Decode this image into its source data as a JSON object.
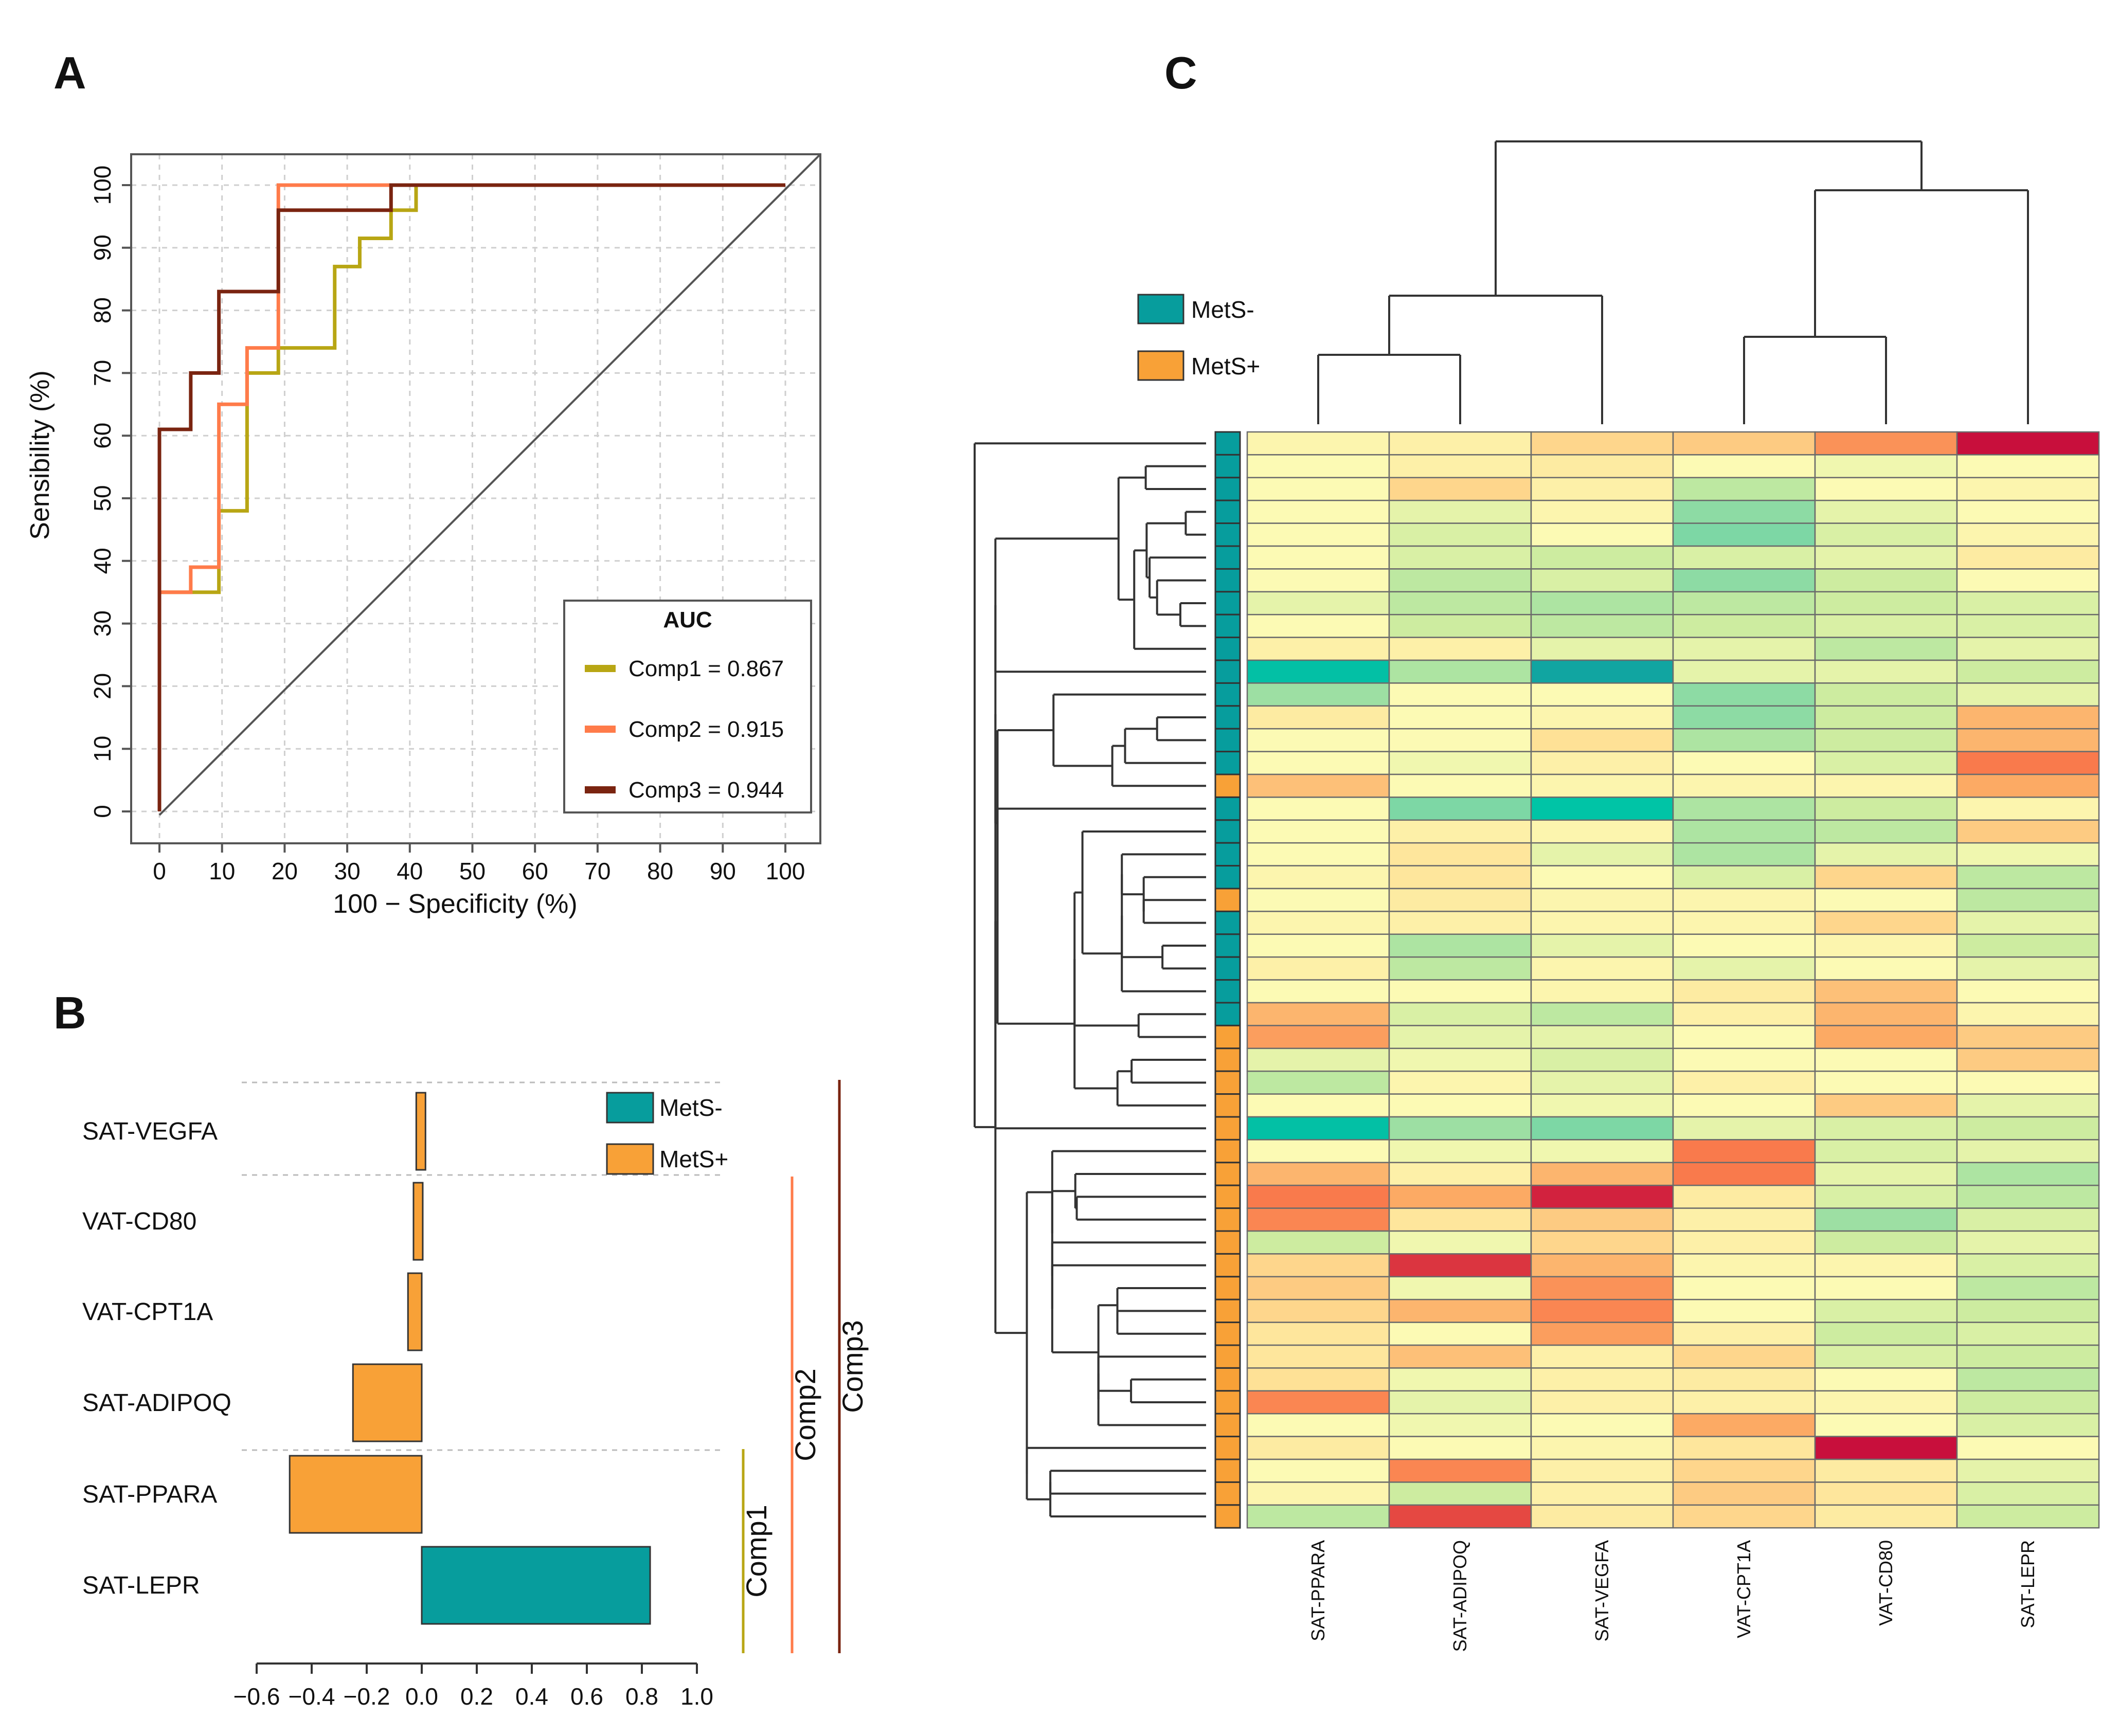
{
  "colors": {
    "mets_neg": "#079d9d",
    "mets_pos": "#f8a137",
    "comp1": "#b8a614",
    "comp2": "#ff7b4a",
    "comp3": "#7a2410",
    "axis": "#555555",
    "grid": "#cfcfcf"
  },
  "panel_labels": {
    "a": "A",
    "b": "B",
    "c": "C"
  },
  "chart_data": [
    {
      "id": "roc",
      "type": "line",
      "xlabel": "100 − Specificity (%)",
      "ylabel": "Sensibility (%)",
      "xlim": [
        0,
        100
      ],
      "ylim": [
        0,
        100
      ],
      "xticks": [
        "0",
        "10",
        "20",
        "30",
        "40",
        "50",
        "60",
        "70",
        "80",
        "90",
        "100"
      ],
      "yticks": [
        "0",
        "10",
        "20",
        "30",
        "40",
        "50",
        "60",
        "70",
        "80",
        "90",
        "100"
      ],
      "grid": true,
      "legend": {
        "title": "AUC",
        "placement": "bottom-right"
      },
      "series": [
        {
          "name": "Comp1 = 0.867",
          "color": "#b8a614",
          "points": [
            [
              0,
              0
            ],
            [
              0,
              35
            ],
            [
              5,
              35
            ],
            [
              9.5,
              35
            ],
            [
              9.5,
              48
            ],
            [
              14,
              48
            ],
            [
              14,
              70
            ],
            [
              19,
              70
            ],
            [
              19,
              74
            ],
            [
              28,
              74
            ],
            [
              28,
              87
            ],
            [
              32,
              87
            ],
            [
              32,
              91.5
            ],
            [
              37,
              91.5
            ],
            [
              37,
              96
            ],
            [
              41,
              96
            ],
            [
              41,
              100
            ],
            [
              100,
              100
            ]
          ]
        },
        {
          "name": "Comp2 = 0.915",
          "color": "#ff7b4a",
          "points": [
            [
              0,
              0
            ],
            [
              0,
              35
            ],
            [
              5,
              35
            ],
            [
              5,
              39
            ],
            [
              9.5,
              39
            ],
            [
              9.5,
              65
            ],
            [
              14,
              65
            ],
            [
              14,
              74
            ],
            [
              19,
              74
            ],
            [
              19,
              100
            ],
            [
              100,
              100
            ]
          ]
        },
        {
          "name": "Comp3 = 0.944",
          "color": "#7a2410",
          "points": [
            [
              0,
              0
            ],
            [
              0,
              61
            ],
            [
              5,
              61
            ],
            [
              5,
              70
            ],
            [
              9.5,
              70
            ],
            [
              9.5,
              83
            ],
            [
              19,
              83
            ],
            [
              19,
              96
            ],
            [
              37,
              96
            ],
            [
              37,
              100
            ],
            [
              100,
              100
            ]
          ]
        }
      ]
    },
    {
      "id": "loadings",
      "type": "bar",
      "orientation": "horizontal",
      "categories": [
        "SAT-VEGFA",
        "VAT-CD80",
        "VAT-CPT1A",
        "SAT-ADIPOQ",
        "SAT-PPARA",
        "SAT-LEPR"
      ],
      "values": [
        -0.02,
        -0.03,
        -0.05,
        -0.25,
        -0.48,
        0.83
      ],
      "groups": [
        "MetS+",
        "MetS+",
        "MetS+",
        "MetS+",
        "MetS+",
        "MetS-"
      ],
      "xlim": [
        -0.6,
        1.0
      ],
      "xticks": [
        "−0.6",
        "−0.4",
        "−0.2",
        "0.0",
        "0.2",
        "0.4",
        "0.6",
        "0.8",
        "1.0"
      ],
      "legend": [
        "MetS-",
        "MetS+"
      ],
      "component_brackets": [
        {
          "label": "Comp1",
          "rows": [
            "SAT-LEPR"
          ]
        },
        {
          "label": "Comp2",
          "rows": [
            "SAT-LEPR",
            "SAT-PPARA",
            "SAT-ADIPOQ",
            "VAT-CPT1A",
            "VAT-CD80"
          ]
        },
        {
          "label": "Comp3",
          "rows": [
            "SAT-LEPR",
            "SAT-PPARA",
            "SAT-ADIPOQ",
            "VAT-CPT1A",
            "VAT-CD80",
            "SAT-VEGFA"
          ]
        }
      ]
    },
    {
      "id": "heatmap",
      "type": "heatmap",
      "columns": [
        "SAT-PPARA",
        "SAT-ADIPOQ",
        "SAT-VEGFA",
        "VAT-CPT1A",
        "VAT-CD80",
        "SAT-LEPR"
      ],
      "legend": [
        "MetS-",
        "MetS+"
      ],
      "scale_note": "values are relative expression levels (-1 low/teal … +1 high/crimson)",
      "rows": [
        {
          "group": "MetS-",
          "values": [
            0.05,
            0.1,
            0.3,
            0.35,
            0.6,
            1.0
          ]
        },
        {
          "group": "MetS-",
          "values": [
            0.0,
            0.1,
            0.15,
            0.0,
            -0.05,
            0.0
          ]
        },
        {
          "group": "MetS-",
          "values": [
            0.0,
            0.3,
            0.1,
            -0.25,
            0.0,
            0.05
          ]
        },
        {
          "group": "MetS-",
          "values": [
            0.0,
            -0.1,
            0.05,
            -0.4,
            -0.1,
            0.0
          ]
        },
        {
          "group": "MetS-",
          "values": [
            0.0,
            -0.15,
            0.0,
            -0.45,
            -0.15,
            0.05
          ]
        },
        {
          "group": "MetS-",
          "values": [
            0.0,
            -0.15,
            -0.2,
            -0.15,
            -0.1,
            0.15
          ]
        },
        {
          "group": "MetS-",
          "values": [
            0.0,
            -0.25,
            -0.15,
            -0.4,
            -0.2,
            0.0
          ]
        },
        {
          "group": "MetS-",
          "values": [
            -0.1,
            -0.25,
            -0.3,
            -0.25,
            -0.2,
            -0.15
          ]
        },
        {
          "group": "MetS-",
          "values": [
            0.0,
            -0.2,
            -0.25,
            -0.2,
            -0.15,
            -0.15
          ]
        },
        {
          "group": "MetS-",
          "values": [
            0.1,
            0.1,
            -0.1,
            -0.1,
            -0.25,
            -0.1
          ]
        },
        {
          "group": "MetS-",
          "values": [
            -0.95,
            -0.3,
            -0.65,
            -0.1,
            -0.1,
            -0.2
          ]
        },
        {
          "group": "MetS-",
          "values": [
            -0.35,
            0.0,
            0.0,
            -0.4,
            -0.2,
            -0.1
          ]
        },
        {
          "group": "MetS-",
          "values": [
            0.15,
            0.0,
            0.05,
            -0.4,
            -0.2,
            0.45
          ]
        },
        {
          "group": "MetS-",
          "values": [
            0.0,
            0.0,
            0.25,
            -0.3,
            -0.2,
            0.45
          ]
        },
        {
          "group": "MetS-",
          "values": [
            0.0,
            -0.05,
            0.1,
            0.0,
            -0.15,
            0.7
          ]
        },
        {
          "group": "MetS+",
          "values": [
            0.4,
            0.0,
            0.05,
            0.05,
            0.05,
            0.5
          ]
        },
        {
          "group": "MetS-",
          "values": [
            0.0,
            -0.45,
            -1.0,
            -0.3,
            -0.2,
            0.05
          ]
        },
        {
          "group": "MetS-",
          "values": [
            0.0,
            0.1,
            0.05,
            -0.3,
            -0.25,
            0.35
          ]
        },
        {
          "group": "MetS-",
          "values": [
            0.0,
            0.2,
            -0.1,
            -0.3,
            -0.1,
            -0.05
          ]
        },
        {
          "group": "MetS-",
          "values": [
            0.05,
            0.2,
            0.0,
            -0.15,
            0.3,
            -0.25
          ]
        },
        {
          "group": "MetS+",
          "values": [
            0.0,
            0.15,
            0.05,
            0.05,
            0.0,
            -0.25
          ]
        },
        {
          "group": "MetS-",
          "values": [
            0.05,
            0.1,
            0.05,
            0.05,
            0.3,
            -0.1
          ]
        },
        {
          "group": "MetS-",
          "values": [
            0.0,
            -0.3,
            -0.1,
            0.0,
            0.05,
            -0.2
          ]
        },
        {
          "group": "MetS-",
          "values": [
            0.1,
            -0.25,
            0.05,
            -0.1,
            0.0,
            -0.1
          ]
        },
        {
          "group": "MetS-",
          "values": [
            0.0,
            0.0,
            0.05,
            0.15,
            0.4,
            0.0
          ]
        },
        {
          "group": "MetS-",
          "values": [
            0.45,
            -0.15,
            -0.25,
            0.1,
            0.45,
            0.05
          ]
        },
        {
          "group": "MetS+",
          "values": [
            0.55,
            -0.1,
            -0.1,
            0.0,
            0.5,
            0.35
          ]
        },
        {
          "group": "MetS+",
          "values": [
            -0.1,
            -0.05,
            -0.15,
            0.0,
            0.0,
            0.35
          ]
        },
        {
          "group": "MetS+",
          "values": [
            -0.25,
            0.05,
            -0.1,
            0.1,
            0.0,
            0.0
          ]
        },
        {
          "group": "MetS+",
          "values": [
            0.0,
            0.0,
            -0.05,
            0.0,
            0.35,
            -0.1
          ]
        },
        {
          "group": "MetS+",
          "values": [
            -0.95,
            -0.35,
            -0.45,
            -0.1,
            -0.15,
            -0.2
          ]
        },
        {
          "group": "MetS+",
          "values": [
            0.0,
            -0.05,
            -0.05,
            0.7,
            -0.15,
            -0.1
          ]
        },
        {
          "group": "MetS+",
          "values": [
            0.45,
            0.1,
            0.45,
            0.7,
            -0.1,
            -0.3
          ]
        },
        {
          "group": "MetS+",
          "values": [
            0.7,
            0.5,
            0.95,
            0.15,
            -0.15,
            -0.25
          ]
        },
        {
          "group": "MetS+",
          "values": [
            0.65,
            0.2,
            0.35,
            0.1,
            -0.35,
            -0.15
          ]
        },
        {
          "group": "MetS+",
          "values": [
            -0.2,
            -0.05,
            0.3,
            0.1,
            -0.2,
            -0.1
          ]
        },
        {
          "group": "MetS+",
          "values": [
            0.3,
            0.9,
            0.45,
            0.05,
            0.05,
            -0.15
          ]
        },
        {
          "group": "MetS+",
          "values": [
            0.35,
            -0.05,
            0.6,
            0.0,
            0.0,
            -0.25
          ]
        },
        {
          "group": "MetS+",
          "values": [
            0.3,
            0.45,
            0.65,
            0.0,
            -0.15,
            -0.2
          ]
        },
        {
          "group": "MetS+",
          "values": [
            0.2,
            0.0,
            0.55,
            0.1,
            -0.2,
            -0.15
          ]
        },
        {
          "group": "MetS+",
          "values": [
            0.2,
            0.4,
            0.1,
            0.3,
            -0.15,
            -0.2
          ]
        },
        {
          "group": "MetS+",
          "values": [
            0.25,
            -0.05,
            0.1,
            0.15,
            0.0,
            -0.25
          ]
        },
        {
          "group": "MetS+",
          "values": [
            0.65,
            -0.1,
            0.1,
            0.1,
            0.05,
            -0.2
          ]
        },
        {
          "group": "MetS+",
          "values": [
            0.0,
            -0.05,
            0.0,
            0.5,
            0.0,
            -0.15
          ]
        },
        {
          "group": "MetS+",
          "values": [
            0.15,
            0.0,
            0.05,
            0.2,
            1.0,
            0.0
          ]
        },
        {
          "group": "MetS+",
          "values": [
            0.0,
            0.65,
            0.1,
            0.3,
            0.15,
            -0.1
          ]
        },
        {
          "group": "MetS+",
          "values": [
            0.05,
            -0.2,
            0.1,
            0.35,
            0.2,
            -0.15
          ]
        },
        {
          "group": "MetS+",
          "values": [
            -0.25,
            0.85,
            0.15,
            0.3,
            0.15,
            -0.2
          ]
        }
      ]
    }
  ]
}
